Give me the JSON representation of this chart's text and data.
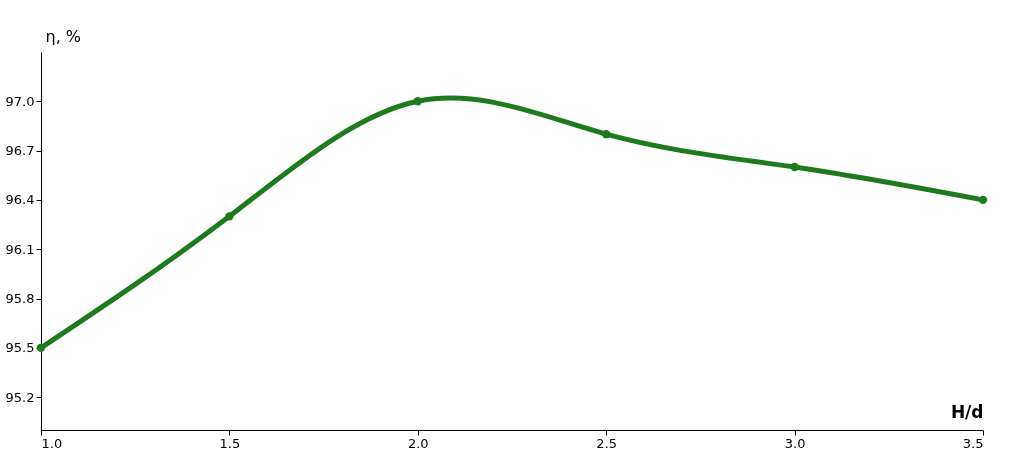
{
  "chart_data": {
    "type": "line",
    "xlabel": "H/d",
    "ylabel": "η, %",
    "x": [
      1.0,
      1.5,
      2.0,
      2.5,
      3.0,
      3.5
    ],
    "series": [
      {
        "color": "#1f7a1f",
        "values": [
          95.5,
          96.3,
          97.0,
          96.8,
          96.6,
          96.4
        ]
      }
    ],
    "xlim": [
      1.0,
      3.5
    ],
    "xticks": [
      {
        "value": 1.0,
        "label": "1.0"
      },
      1.5,
      {
        "value": 2.0,
        "label": "2.0"
      },
      2.5,
      {
        "value": 3.0,
        "label": "3.0"
      },
      3.5
    ],
    "ylim": [
      95.0,
      97.3
    ],
    "yticks": [
      95.2,
      95.5,
      95.8,
      96.1,
      96.4,
      96.7,
      {
        "value": 97.0,
        "label": "97.0"
      }
    ],
    "grid": false,
    "marker": "circle",
    "line_style": "solid"
  }
}
